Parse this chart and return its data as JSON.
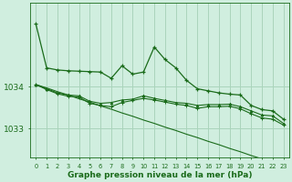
{
  "hours": [
    0,
    1,
    2,
    3,
    4,
    5,
    6,
    7,
    8,
    9,
    10,
    11,
    12,
    13,
    14,
    15,
    16,
    17,
    18,
    19,
    20,
    21,
    22,
    23
  ],
  "line1": [
    1035.5,
    1034.45,
    1034.4,
    1034.38,
    1034.37,
    1034.36,
    1034.35,
    1034.2,
    1034.5,
    1034.3,
    1034.35,
    1034.95,
    1034.65,
    1034.45,
    1034.15,
    1033.95,
    1033.9,
    1033.85,
    1033.82,
    1033.8,
    1033.55,
    1033.45,
    1033.42,
    1033.22
  ],
  "line2": [
    1034.05,
    1033.95,
    1033.85,
    1033.8,
    1033.78,
    1033.65,
    1033.6,
    1033.62,
    1033.68,
    1033.7,
    1033.78,
    1033.72,
    1033.67,
    1033.62,
    1033.6,
    1033.55,
    1033.57,
    1033.57,
    1033.58,
    1033.52,
    1033.42,
    1033.32,
    1033.3,
    1033.12
  ],
  "line3": [
    1034.05,
    1033.93,
    1033.83,
    1033.77,
    1033.75,
    1033.6,
    1033.55,
    1033.52,
    1033.62,
    1033.67,
    1033.72,
    1033.68,
    1033.63,
    1033.58,
    1033.55,
    1033.48,
    1033.52,
    1033.52,
    1033.53,
    1033.47,
    1033.35,
    1033.25,
    1033.22,
    1033.08
  ],
  "line4": [
    1034.05,
    1033.97,
    1033.88,
    1033.8,
    1033.71,
    1033.63,
    1033.54,
    1033.46,
    1033.37,
    1033.29,
    1033.2,
    1033.12,
    1033.03,
    1032.95,
    1032.86,
    1032.78,
    1032.69,
    1032.61,
    1032.52,
    1032.44,
    1032.35,
    1032.27,
    1032.18,
    1032.1
  ],
  "bg_color": "#d0eedf",
  "line_color": "#1a6b1a",
  "grid_color": "#aad4bb",
  "text_color": "#1a6b1a",
  "ylabel_ticks": [
    1033,
    1034
  ],
  "ylim": [
    1032.3,
    1036.0
  ],
  "xlim": [
    -0.5,
    23.5
  ],
  "xlabel": "Graphe pression niveau de la mer (hPa)"
}
